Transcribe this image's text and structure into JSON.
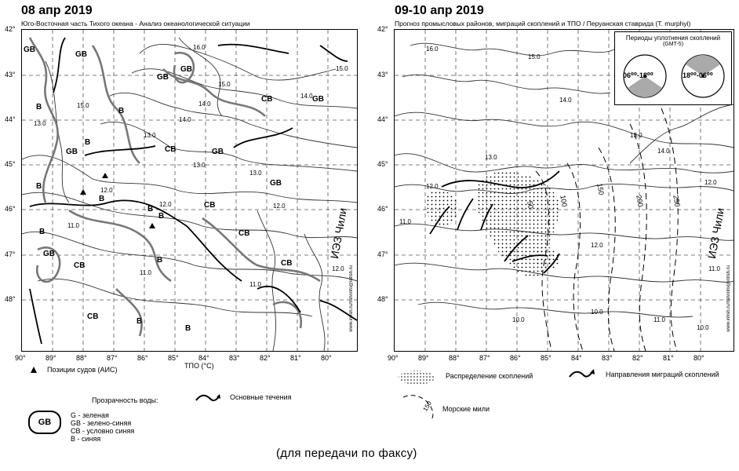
{
  "left_map": {
    "title": "08 апр 2019",
    "subtitle": "Юго-Восточная часть Тихого океана - Анализ океанологической ситуации",
    "lat_labels": [
      "42°",
      "43°",
      "44°",
      "45°",
      "46°",
      "47°",
      "48°"
    ],
    "lon_labels": [
      "90°",
      "89°",
      "88°",
      "87°",
      "86°",
      "85°",
      "84°",
      "83°",
      "82°",
      "81°",
      "80°"
    ],
    "axis_caption": "ТПО (°C)",
    "iez_label": "ИЭЗ Чили",
    "water_labels": [
      "GB",
      "GB",
      "GB",
      "B",
      "B",
      "B",
      "GB",
      "CB",
      "GB",
      "CB",
      "GB",
      "B",
      "B",
      "B",
      "CB",
      "GB",
      "CB",
      "CB",
      "B",
      "B",
      "B",
      "CB",
      "GB",
      "GB",
      "B",
      "B",
      "CB"
    ],
    "isotherms": [
      "16.0",
      "15.0",
      "15.0",
      "14.0",
      "14.0",
      "13.0",
      "13.0",
      "12.0",
      "12.0",
      "11.0",
      "11.0",
      "12.0",
      "13.0",
      "14.0",
      "15.0",
      "11.0",
      "12.0",
      "13.0"
    ],
    "credit": "www.infish.ru/fish/info@infish.ru"
  },
  "right_map": {
    "title": "09-10 апр 2019",
    "subtitle": "Прогноз промысловых районов, миграций скоплений и ТПО / Перуанская ставрида (T. murphyi)",
    "lat_labels": [
      "42°",
      "43°",
      "44°",
      "45°",
      "46°",
      "47°",
      "48°"
    ],
    "lon_labels": [
      "90°",
      "89°",
      "88°",
      "87°",
      "86°",
      "85°",
      "84°",
      "83°",
      "82°",
      "81°",
      "80°"
    ],
    "iez_label": "ИЭЗ Чили",
    "periods": {
      "title": "Периоды уплотнения скоплений",
      "subtitle": "(GMT-5)",
      "clock1": "06⁰⁰-18⁰⁰",
      "clock2": "18⁰⁰-06⁰⁰"
    },
    "distances": [
      "50",
      "100",
      "150",
      "200",
      "250"
    ],
    "isotherms": [
      "16.0",
      "15.0",
      "14.0",
      "13.0",
      "12.0",
      "11.0",
      "10.0",
      "10.0",
      "11.0",
      "12.0",
      "13.0",
      "14.0",
      "12.0",
      "11.0",
      "10.0"
    ],
    "credit": "www.infish.ru/fish/info@infish.ru"
  },
  "legend": {
    "vessels": "Позиции судов (АИС)",
    "currents": "Основные течения",
    "transparency_title": "Прозрачность воды:",
    "gb_symbol": "GB",
    "transparency_items": [
      "G - зеленая",
      "GB - зелено-синяя",
      "CB - условно синяя",
      "B - синяя"
    ],
    "distribution": "Распределение скоплений",
    "migration": "Направления миграций скоплений",
    "miles": "Морские мили",
    "miles_value": "150"
  },
  "footer": "(для передачи по факсу)"
}
